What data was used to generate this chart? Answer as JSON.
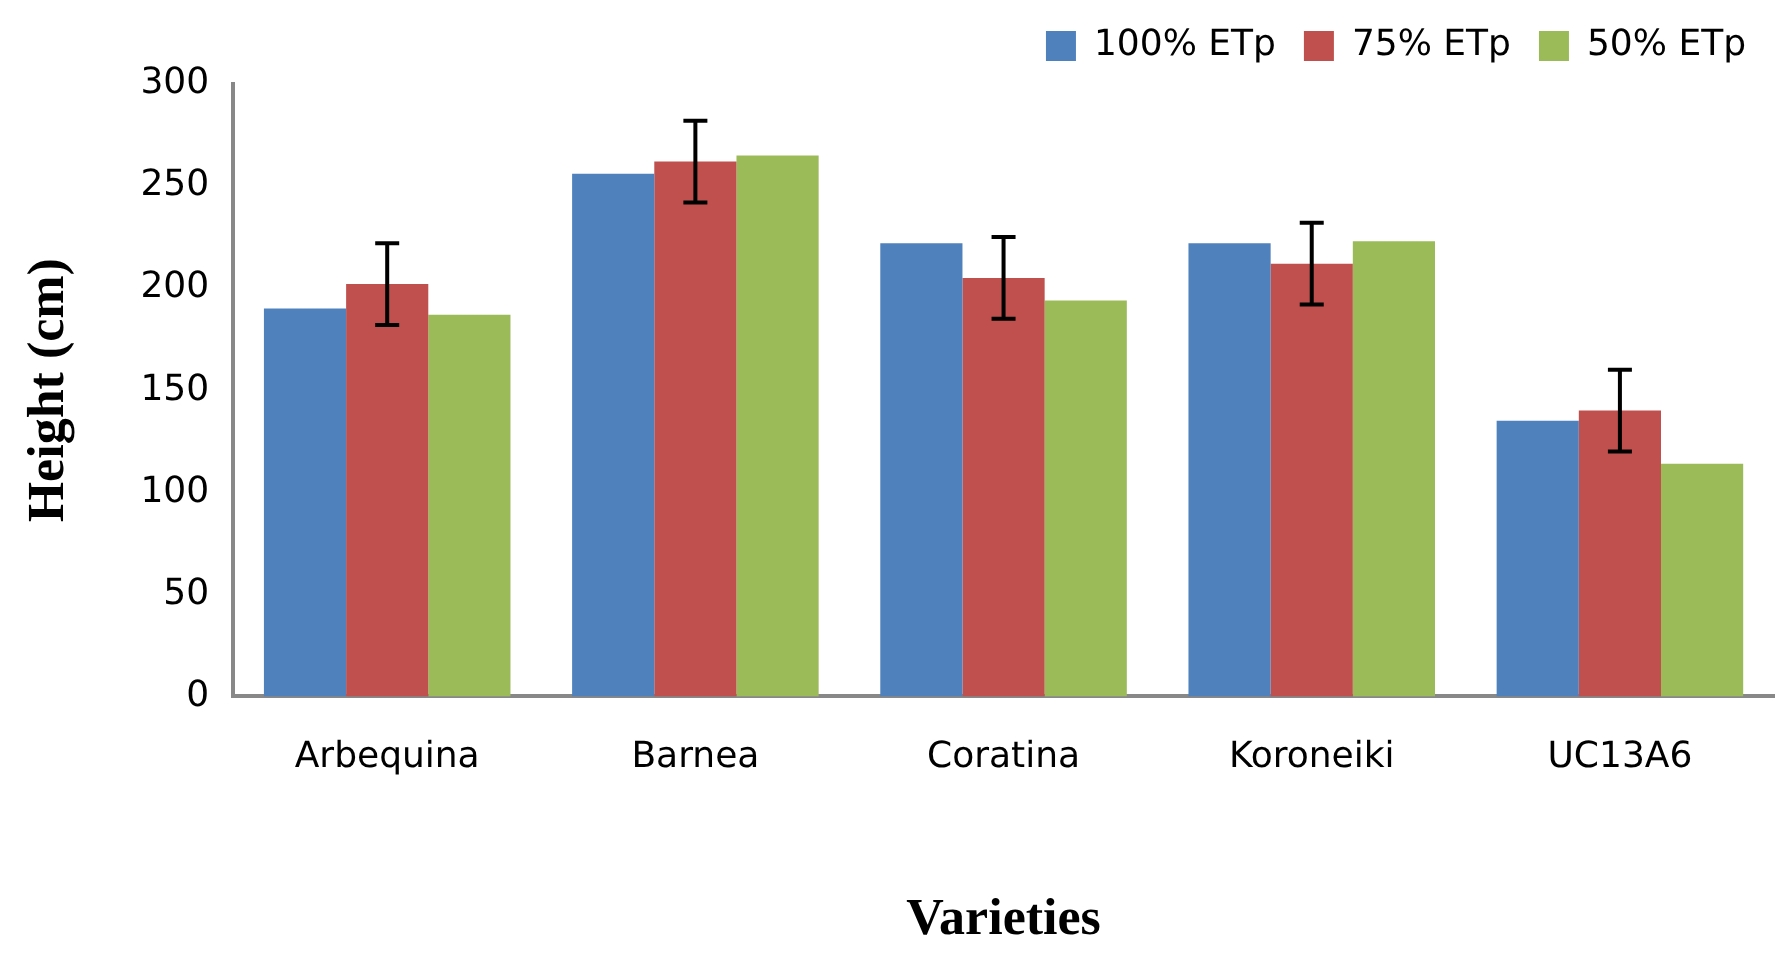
{
  "chart_data": {
    "type": "bar",
    "xlabel": "Varieties",
    "ylabel": "Height (cm)",
    "categories": [
      "Arbequina",
      "Barnea",
      "Coratina",
      "Koroneiki",
      "UC13A6"
    ],
    "series": [
      {
        "name": "100% ETp",
        "color": "#4f81bd",
        "values": [
          190,
          256,
          222,
          222,
          135
        ]
      },
      {
        "name": "75% ETp",
        "color": "#c0504d",
        "values": [
          202,
          262,
          205,
          212,
          140
        ],
        "errors": [
          20,
          20,
          20,
          20,
          20
        ]
      },
      {
        "name": "50% ETp",
        "color": "#9bbb59",
        "values": [
          187,
          265,
          194,
          223,
          114
        ]
      }
    ],
    "ylim": [
      0,
      300
    ],
    "yticks": [
      0,
      50,
      100,
      150,
      200,
      250,
      300
    ],
    "grid": false,
    "legend": "top right"
  }
}
